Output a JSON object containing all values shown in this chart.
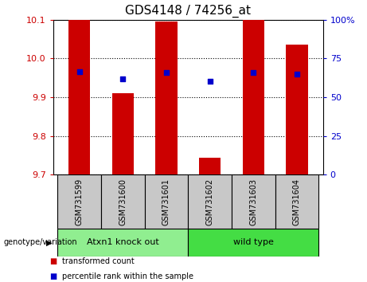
{
  "title": "GDS4148 / 74256_at",
  "samples": [
    "GSM731599",
    "GSM731600",
    "GSM731601",
    "GSM731602",
    "GSM731603",
    "GSM731604"
  ],
  "bar_values": [
    10.1,
    9.91,
    10.095,
    9.745,
    10.1,
    10.035
  ],
  "bar_bottom": 9.7,
  "percentile_values": [
    9.965,
    9.948,
    9.963,
    9.942,
    9.963,
    9.96
  ],
  "ylim": [
    9.7,
    10.1
  ],
  "y2lim": [
    0,
    100
  ],
  "yticks": [
    9.7,
    9.8,
    9.9,
    10.0,
    10.1
  ],
  "y2ticks": [
    0,
    25,
    50,
    75,
    100
  ],
  "bar_color": "#cc0000",
  "percentile_color": "#0000cc",
  "grid_color": "#000000",
  "groups": [
    {
      "label": "Atxn1 knock out",
      "samples": [
        0,
        1,
        2
      ],
      "color": "#90ee90"
    },
    {
      "label": "wild type",
      "samples": [
        3,
        4,
        5
      ],
      "color": "#44dd44"
    }
  ],
  "group_label": "genotype/variation",
  "legend_items": [
    {
      "label": "transformed count",
      "color": "#cc0000"
    },
    {
      "label": "percentile rank within the sample",
      "color": "#0000cc"
    }
  ],
  "bg_xtick": "#c8c8c8",
  "bar_width": 0.5,
  "title_fontsize": 11,
  "tick_fontsize": 8,
  "sample_fontsize": 7,
  "group_fontsize": 8,
  "legend_fontsize": 7
}
